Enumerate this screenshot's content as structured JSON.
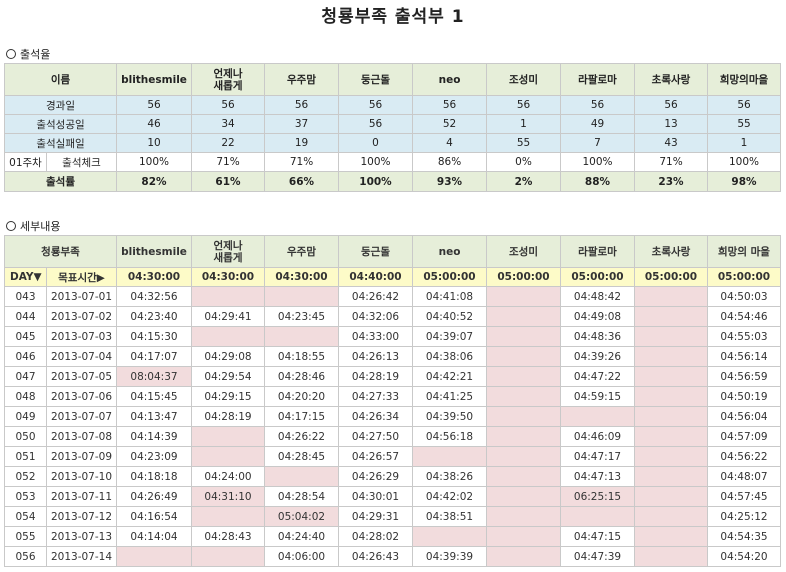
{
  "title": "청룡부족 출석부 1",
  "section1_label": "출석율",
  "section2_label": "세부내용",
  "names": [
    "blithesmile",
    "언제나\n새롭게",
    "우주맘",
    "둥근돌",
    "neo",
    "조성미",
    "라팔로마",
    "초록사랑",
    "희망의마을"
  ],
  "names2": [
    "blithesmile",
    "언제나\n새롭게",
    "우주맘",
    "둥근돌",
    "neo",
    "조성미",
    "라팔로마",
    "초록사랑",
    "희망의 마을"
  ],
  "summary": {
    "header_label": "이름",
    "rows": [
      {
        "label": "경과일",
        "values": [
          "56",
          "56",
          "56",
          "56",
          "56",
          "56",
          "56",
          "56",
          "56"
        ]
      },
      {
        "label": "출석성공일",
        "values": [
          "46",
          "34",
          "37",
          "56",
          "52",
          "1",
          "49",
          "13",
          "55"
        ]
      },
      {
        "label": "출석실패일",
        "values": [
          "10",
          "22",
          "19",
          "0",
          "4",
          "55",
          "7",
          "43",
          "1"
        ]
      }
    ],
    "week_label": "01주차",
    "week_sub": "출석체크",
    "week_values": [
      "100%",
      "71%",
      "71%",
      "100%",
      "86%",
      "0%",
      "100%",
      "71%",
      "100%"
    ],
    "rate_label": "출석률",
    "rate_values": [
      "82%",
      "61%",
      "66%",
      "100%",
      "93%",
      "2%",
      "88%",
      "23%",
      "98%"
    ]
  },
  "detail": {
    "header_label": "청룡부족",
    "day_label": "DAY▼",
    "target_label": "목표시간▶",
    "targets": [
      "04:30:00",
      "04:30:00",
      "04:30:00",
      "04:40:00",
      "05:00:00",
      "05:00:00",
      "05:00:00",
      "05:00:00",
      "05:00:00"
    ],
    "rows": [
      {
        "day": "043",
        "date": "2013-07-01",
        "times": [
          "04:32:56",
          "",
          "",
          "04:26:42",
          "04:41:08",
          "",
          "04:48:42",
          "",
          "04:50:03"
        ],
        "pink": [
          1,
          2,
          5,
          7
        ]
      },
      {
        "day": "044",
        "date": "2013-07-02",
        "times": [
          "04:23:40",
          "04:29:41",
          "04:23:45",
          "04:32:06",
          "04:40:52",
          "",
          "04:49:08",
          "",
          "04:54:46"
        ],
        "pink": [
          5,
          7
        ]
      },
      {
        "day": "045",
        "date": "2013-07-03",
        "times": [
          "04:15:30",
          "",
          "",
          "04:33:00",
          "04:39:07",
          "",
          "04:48:36",
          "",
          "04:55:03"
        ],
        "pink": [
          1,
          2,
          5,
          7
        ]
      },
      {
        "day": "046",
        "date": "2013-07-04",
        "times": [
          "04:17:07",
          "04:29:08",
          "04:18:55",
          "04:26:13",
          "04:38:06",
          "",
          "04:39:26",
          "",
          "04:56:14"
        ],
        "pink": [
          5,
          7
        ]
      },
      {
        "day": "047",
        "date": "2013-07-05",
        "times": [
          "08:04:37",
          "04:29:54",
          "04:28:46",
          "04:28:19",
          "04:42:21",
          "",
          "04:47:22",
          "",
          "04:56:59"
        ],
        "pink": [
          0,
          5,
          7
        ]
      },
      {
        "day": "048",
        "date": "2013-07-06",
        "times": [
          "04:15:45",
          "04:29:15",
          "04:20:20",
          "04:27:33",
          "04:41:25",
          "",
          "04:59:15",
          "",
          "04:50:19"
        ],
        "pink": [
          5,
          7
        ]
      },
      {
        "day": "049",
        "date": "2013-07-07",
        "times": [
          "04:13:47",
          "04:28:19",
          "04:17:15",
          "04:26:34",
          "04:39:50",
          "",
          "",
          "",
          "04:56:04"
        ],
        "pink": [
          5,
          6,
          7
        ]
      },
      {
        "day": "050",
        "date": "2013-07-08",
        "times": [
          "04:14:39",
          "",
          "04:26:22",
          "04:27:50",
          "04:56:18",
          "",
          "04:46:09",
          "",
          "04:57:09"
        ],
        "pink": [
          1,
          5,
          7
        ]
      },
      {
        "day": "051",
        "date": "2013-07-09",
        "times": [
          "04:23:09",
          "",
          "04:28:45",
          "04:26:57",
          "",
          "",
          "04:47:17",
          "",
          "04:56:22"
        ],
        "pink": [
          1,
          4,
          5,
          7
        ]
      },
      {
        "day": "052",
        "date": "2013-07-10",
        "times": [
          "04:18:18",
          "04:24:00",
          "",
          "04:26:29",
          "04:38:26",
          "",
          "04:47:13",
          "",
          "04:48:07"
        ],
        "pink": [
          2,
          5,
          7
        ]
      },
      {
        "day": "053",
        "date": "2013-07-11",
        "times": [
          "04:26:49",
          "04:31:10",
          "04:28:54",
          "04:30:01",
          "04:42:02",
          "",
          "06:25:15",
          "",
          "04:57:45"
        ],
        "pink": [
          1,
          5,
          6,
          7
        ]
      },
      {
        "day": "054",
        "date": "2013-07-12",
        "times": [
          "04:16:54",
          "",
          "05:04:02",
          "04:29:31",
          "04:38:51",
          "",
          "",
          "",
          "04:25:12"
        ],
        "pink": [
          1,
          2,
          5,
          6,
          7
        ]
      },
      {
        "day": "055",
        "date": "2013-07-13",
        "times": [
          "04:14:04",
          "04:28:43",
          "04:24:40",
          "04:28:02",
          "",
          "",
          "04:47:15",
          "",
          "04:54:35"
        ],
        "pink": [
          4,
          5,
          7
        ]
      },
      {
        "day": "056",
        "date": "2013-07-14",
        "times": [
          "",
          "",
          "04:06:00",
          "04:26:43",
          "04:39:39",
          "",
          "04:47:39",
          "",
          "04:54:20"
        ],
        "pink": [
          0,
          1,
          5,
          7
        ]
      }
    ]
  }
}
